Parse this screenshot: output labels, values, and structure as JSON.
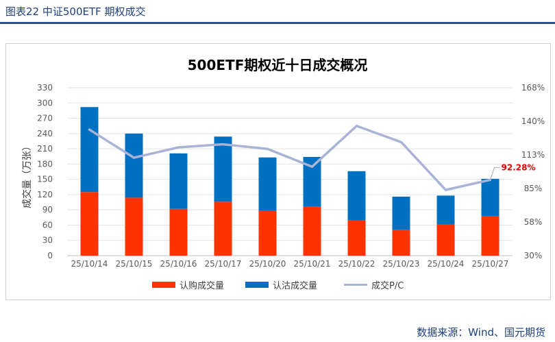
{
  "figure_title": "图表22  中证500ETF 期权成交",
  "source": "数据来源：Wind、国元期货",
  "colors": {
    "call": "#ff3300",
    "put": "#0070c0",
    "pc": "#a9b3d6",
    "annotation": "#e00000",
    "title_blue": "#1f3f7a"
  },
  "chart_data": {
    "type": "bar",
    "title": "500ETF期权近十日成交概况",
    "ylabel": "成交量（万张）",
    "y2label": "",
    "categories": [
      "25/10/14",
      "25/10/15",
      "25/10/16",
      "25/10/17",
      "25/10/20",
      "25/10/21",
      "25/10/22",
      "25/10/23",
      "25/10/24",
      "25/10/27"
    ],
    "ylim": [
      0,
      330
    ],
    "yticks": [
      0,
      30,
      60,
      90,
      120,
      150,
      180,
      210,
      240,
      270,
      300,
      330
    ],
    "y2lim": [
      30,
      168
    ],
    "y2ticks": [
      "30%",
      "58%",
      "85%",
      "113%",
      "140%",
      "168%"
    ],
    "y2tick_values": [
      30,
      57.6,
      85.2,
      112.8,
      140.4,
      168
    ],
    "series": [
      {
        "name": "认购成交量",
        "type": "bar",
        "stack": true,
        "values": [
          125,
          114,
          92,
          106,
          88,
          96,
          70,
          51,
          62,
          78
        ]
      },
      {
        "name": "认沽成交量",
        "type": "bar",
        "stack": true,
        "values": [
          167,
          126,
          109,
          128,
          105,
          98,
          96,
          65,
          56,
          73
        ]
      },
      {
        "name": "成交P/C",
        "type": "line",
        "axis": "right",
        "values": [
          133.6,
          110.5,
          119.0,
          121.5,
          117.7,
          103.1,
          136.6,
          123.3,
          84.0,
          92.28
        ]
      }
    ],
    "annotation": {
      "text": "92.28%",
      "point_index": 9,
      "series": "成交P/C"
    },
    "legend_position": "bottom"
  }
}
